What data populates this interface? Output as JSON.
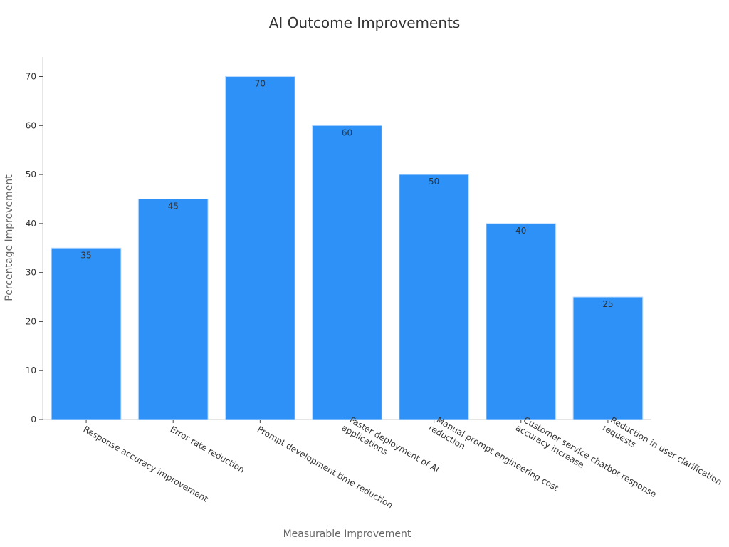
{
  "chart_data": {
    "type": "bar",
    "title": "AI Outcome Improvements",
    "xlabel": "Measurable Improvement",
    "ylabel": "Percentage Improvement",
    "categories": [
      "Response accuracy improvement",
      "Error rate reduction",
      "Prompt development time reduction",
      "Faster deployment of AI applications",
      "Manual prompt engineering cost reduction",
      "Customer service chatbot response accuracy increase",
      "Reduction in user clarification requests"
    ],
    "category_lines": [
      [
        "Response accuracy improvement"
      ],
      [
        "Error rate reduction"
      ],
      [
        "Prompt development time reduction"
      ],
      [
        "Faster deployment of AI",
        "applications"
      ],
      [
        "Manual prompt engineering cost",
        "reduction"
      ],
      [
        "Customer service chatbot response",
        "accuracy increase"
      ],
      [
        "Reduction in user clarification",
        "requests"
      ]
    ],
    "values": [
      35,
      45,
      70,
      60,
      50,
      40,
      25
    ],
    "ylim": [
      0,
      74
    ],
    "yticks": [
      0,
      10,
      20,
      30,
      40,
      50,
      60,
      70
    ],
    "grid": false,
    "data_labels": true,
    "bar_color": "#2d91f7"
  }
}
